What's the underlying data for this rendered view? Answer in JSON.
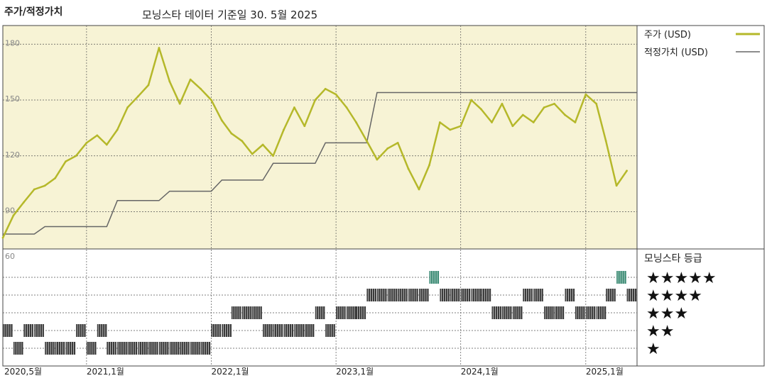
{
  "header": {
    "title": "주가/적정가치",
    "subtitle": "모닝스타 데이터 기준일 30. 5월 2025"
  },
  "colors": {
    "price_line": "#b5b82a",
    "fair_value_line": "#666666",
    "upper_background": "#f7f3d5",
    "rating_bar": "#3a3a3a",
    "five_star_bar": "#3a8a73"
  },
  "chart_data": [
    {
      "type": "line",
      "x_axis_labels": [
        "2020,5월",
        "2021,1월",
        "2022,1월",
        "2023,1월",
        "2024,1월",
        "2025,1월"
      ],
      "ylim": [
        70,
        190
      ],
      "y_ticks": [
        180,
        150,
        120,
        90
      ],
      "grid": true,
      "legend_position": "right",
      "series": [
        {
          "name": "주가 (USD)",
          "x": [
            "2020-05",
            "2020-06",
            "2020-07",
            "2020-08",
            "2020-09",
            "2020-10",
            "2020-11",
            "2020-12",
            "2021-01",
            "2021-02",
            "2021-03",
            "2021-04",
            "2021-05",
            "2021-06",
            "2021-07",
            "2021-08",
            "2021-09",
            "2021-10",
            "2021-11",
            "2021-12",
            "2022-01",
            "2022-02",
            "2022-03",
            "2022-04",
            "2022-05",
            "2022-06",
            "2022-07",
            "2022-08",
            "2022-09",
            "2022-10",
            "2022-11",
            "2022-12",
            "2023-01",
            "2023-02",
            "2023-03",
            "2023-04",
            "2023-05",
            "2023-06",
            "2023-07",
            "2023-08",
            "2023-09",
            "2023-10",
            "2023-11",
            "2023-12",
            "2024-01",
            "2024-02",
            "2024-03",
            "2024-04",
            "2024-05",
            "2024-06",
            "2024-07",
            "2024-08",
            "2024-09",
            "2024-10",
            "2024-11",
            "2024-12",
            "2025-01",
            "2025-02",
            "2025-03",
            "2025-04",
            "2025-05"
          ],
          "values": [
            76,
            88,
            95,
            102,
            104,
            108,
            117,
            120,
            127,
            131,
            126,
            134,
            146,
            152,
            158,
            178,
            160,
            148,
            161,
            156,
            150,
            139,
            132,
            128,
            121,
            126,
            120,
            134,
            146,
            136,
            150,
            156,
            153,
            146,
            138,
            128,
            118,
            124,
            127,
            113,
            102,
            115,
            138,
            134,
            136,
            150,
            145,
            138,
            148,
            136,
            142,
            138,
            146,
            148,
            142,
            138,
            153,
            148,
            128,
            104,
            112
          ]
        },
        {
          "name": "적정가치 (USD)",
          "x": [
            "2020-05",
            "2020-08",
            "2020-09",
            "2021-03",
            "2021-04",
            "2021-08",
            "2021-09",
            "2022-01",
            "2022-02",
            "2022-06",
            "2022-07",
            "2022-11",
            "2022-12",
            "2023-04",
            "2023-05",
            "2025-05"
          ],
          "values": [
            78,
            78,
            82,
            82,
            96,
            96,
            101,
            101,
            107,
            107,
            116,
            116,
            127,
            127,
            154,
            154
          ]
        }
      ]
    },
    {
      "type": "heatmap",
      "title": "모닝스타 등급",
      "ylim_label": "60",
      "rows": [
        "★★★★★",
        "★★★★",
        "★★★",
        "★★",
        "★"
      ],
      "rating_by_month": {
        "x": [
          "2020-05",
          "2020-06",
          "2020-07",
          "2020-08",
          "2020-09",
          "2020-10",
          "2020-11",
          "2020-12",
          "2021-01",
          "2021-02",
          "2021-03",
          "2021-04",
          "2021-05",
          "2021-06",
          "2021-07",
          "2021-08",
          "2021-09",
          "2021-10",
          "2021-11",
          "2021-12",
          "2022-01",
          "2022-02",
          "2022-03",
          "2022-04",
          "2022-05",
          "2022-06",
          "2022-07",
          "2022-08",
          "2022-09",
          "2022-10",
          "2022-11",
          "2022-12",
          "2023-01",
          "2023-02",
          "2023-03",
          "2023-04",
          "2023-05",
          "2023-06",
          "2023-07",
          "2023-08",
          "2023-09",
          "2023-10",
          "2023-11",
          "2023-12",
          "2024-01",
          "2024-02",
          "2024-03",
          "2024-04",
          "2024-05",
          "2024-06",
          "2024-07",
          "2024-08",
          "2024-09",
          "2024-10",
          "2024-11",
          "2024-12",
          "2025-01",
          "2025-02",
          "2025-03",
          "2025-04",
          "2025-05"
        ],
        "stars": [
          2,
          1,
          2,
          2,
          1,
          1,
          1,
          2,
          1,
          2,
          1,
          1,
          1,
          1,
          1,
          1,
          1,
          1,
          1,
          1,
          2,
          2,
          3,
          3,
          3,
          2,
          2,
          2,
          2,
          2,
          3,
          2,
          3,
          3,
          3,
          4,
          4,
          4,
          4,
          4,
          4,
          5,
          4,
          4,
          4,
          4,
          4,
          3,
          3,
          3,
          4,
          4,
          3,
          3,
          4,
          3,
          3,
          3,
          4,
          5,
          4
        ]
      }
    }
  ]
}
